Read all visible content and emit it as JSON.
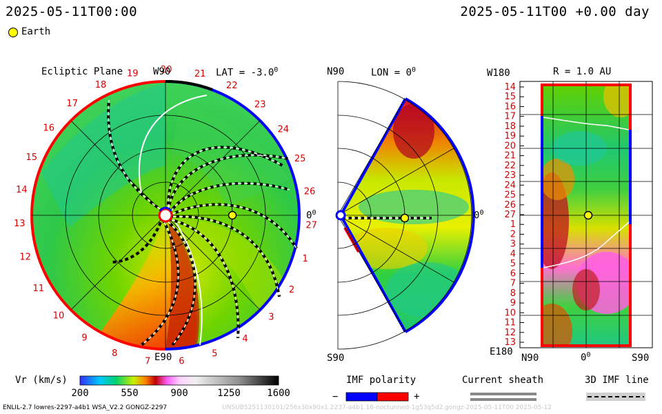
{
  "header": {
    "time_left": "2025-05-11T00:00",
    "time_right": "2025-05-11T00 +0.00 day"
  },
  "legend_earth": {
    "label": "Earth",
    "color": "#ffff00"
  },
  "panel1": {
    "title": "Ecliptic Plane",
    "lat_label": "LAT = -3.0",
    "lat_sup": "0",
    "top_label": "W90",
    "bottom_label": "E90",
    "right_label": "0",
    "right_sup": "0",
    "carrington_ticks": [
      "19",
      "20",
      "21",
      "22",
      "23",
      "24",
      "25",
      "26",
      "27",
      "1",
      "2",
      "3",
      "4",
      "5",
      "6",
      "7",
      "8",
      "9",
      "10",
      "11",
      "12",
      "13",
      "14",
      "15",
      "16",
      "17",
      "18"
    ]
  },
  "panel2": {
    "top_left": "N90",
    "title": "LON = 0",
    "title_sup": "0",
    "right_label": "0",
    "right_sup": "0",
    "bottom_label": "S90"
  },
  "panel3": {
    "top_left": "W180",
    "title": "R = 1.0 AU",
    "bottom_left": "E180",
    "x_left": "N90",
    "x_mid": "0",
    "x_mid_sup": "0",
    "x_right": "S90",
    "y_ticks": [
      "14",
      "15",
      "16",
      "17",
      "18",
      "19",
      "20",
      "21",
      "22",
      "23",
      "24",
      "25",
      "26",
      "27",
      "1",
      "2",
      "3",
      "4",
      "5",
      "6",
      "7",
      "8",
      "9",
      "10",
      "11",
      "12",
      "13"
    ]
  },
  "colorbar": {
    "label": "Vr (km/s)",
    "ticks": [
      "200",
      "550",
      "900",
      "1250",
      "1600"
    ]
  },
  "imf": {
    "title": "IMF polarity",
    "minus": "−",
    "plus": "+",
    "neg_color": "#0000ff",
    "pos_color": "#ff0000"
  },
  "sheath": {
    "title": "Current sheath"
  },
  "imf_line": {
    "title": "3D IMF line"
  },
  "footer": {
    "left": "ENLIL-2.7 lowres-2297-a4b1 WSA_V2.2 GONGZ-2297",
    "right": "UNSUB5251130101/256x30x90x1.2237-a4b1.16-noctunned-1g53q5d2.gongz-2025-05-11T00 2025-05-12"
  }
}
